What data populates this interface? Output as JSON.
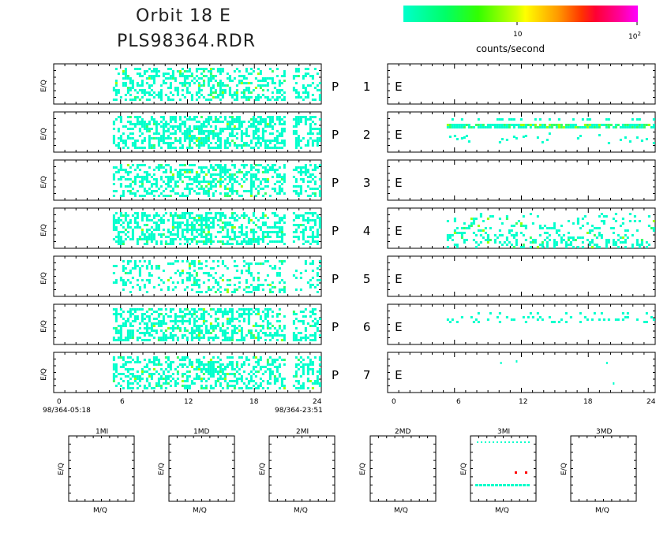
{
  "header": {
    "title": "Orbit 18 E",
    "subtitle": "PLS98364.RDR"
  },
  "colorbar": {
    "tick_10": "10",
    "tick_100": "10",
    "tick_100_exp": "2",
    "label": "counts/second"
  },
  "left_axis": {
    "ticks": [
      "0",
      "6",
      "12",
      "18",
      "24"
    ],
    "start_label": "98/364-05:18",
    "end_label": "98/364-23:51"
  },
  "right_axis": {
    "ticks": [
      "0",
      "6",
      "12",
      "18",
      "24"
    ]
  },
  "ylabel": "E/Q",
  "panel_labels": [
    "P 1 E",
    "P 2 E",
    "P 3 E",
    "P 4 E",
    "P 5 E",
    "P 6 E",
    "P 7 E"
  ],
  "small_panels": {
    "titles": [
      "1MI",
      "1MD",
      "2MI",
      "2MD",
      "3MI",
      "3MD"
    ],
    "xlabel": "M/Q",
    "ylabel": "E/Q"
  },
  "colors": {
    "low": "#00ffcc",
    "mid": "#33ff66",
    "high": "#99ff00",
    "hot": "#ff0000"
  },
  "chart_data": {
    "type": "heatmap",
    "x_range_hours": [
      0,
      24
    ],
    "left_data_hours": [
      5.3,
      23.85
    ],
    "left_gap_hours": [
      20.6,
      21.3
    ],
    "right_data_hours": {
      "P 1 E": null,
      "P 2 E": [
        5.3,
        23.85
      ],
      "P 3 E": null,
      "P 4 E": [
        5.3,
        23.85
      ],
      "P 5 E": null,
      "P 6 E": [
        5.3,
        23.85
      ],
      "P 7 E": [
        10,
        20
      ]
    }
  }
}
